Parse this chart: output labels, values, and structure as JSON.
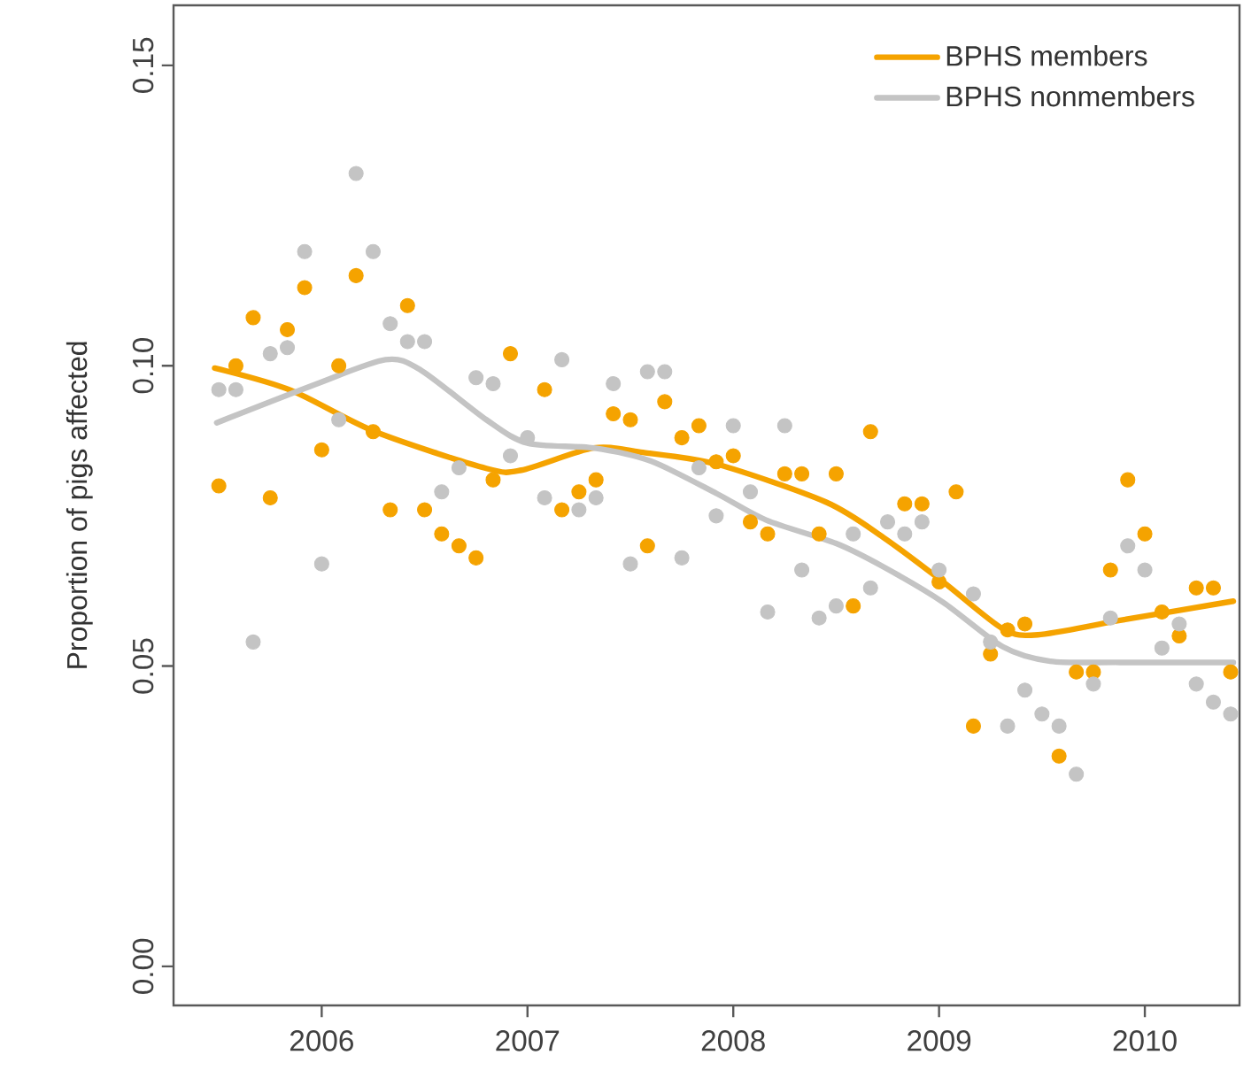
{
  "chart_data": {
    "type": "scatter",
    "ylabel": "Proportion of pigs affected",
    "xlim": [
      2005.28,
      2010.46
    ],
    "ylim": [
      -0.0065,
      0.16
    ],
    "xticks": [
      2006,
      2007,
      2008,
      2009,
      2010
    ],
    "yticks": [
      {
        "value": 0,
        "label": "0.00"
      },
      {
        "value": 0.05,
        "label": "0.05"
      },
      {
        "value": 0.1,
        "label": "0.10"
      },
      {
        "value": 0.15,
        "label": "0.15"
      }
    ],
    "grid": false,
    "legend": "top right",
    "series": [
      {
        "marker": "circle",
        "color": "#f5a300",
        "x": [
          2005.5,
          2005.583,
          2005.667,
          2005.75,
          2005.833,
          2005.917,
          2006.0,
          2006.083,
          2006.167,
          2006.25,
          2006.333,
          2006.417,
          2006.5,
          2006.583,
          2006.667,
          2006.75,
          2006.833,
          2006.917,
          2007.0,
          2007.083,
          2007.167,
          2007.25,
          2007.333,
          2007.417,
          2007.5,
          2007.583,
          2007.667,
          2007.75,
          2007.833,
          2007.917,
          2008.0,
          2008.083,
          2008.167,
          2008.25,
          2008.333,
          2008.417,
          2008.5,
          2008.583,
          2008.667,
          2008.75,
          2008.833,
          2008.917,
          2009.0,
          2009.083,
          2009.167,
          2009.25,
          2009.333,
          2009.417,
          2009.5,
          2009.583,
          2009.667,
          2009.75,
          2009.833,
          2009.917,
          2010.0,
          2010.083,
          2010.167,
          2010.25,
          2010.333,
          2010.417
        ],
        "values": [
          0.08,
          0.1,
          0.108,
          0.078,
          0.106,
          0.113,
          0.086,
          0.1,
          0.115,
          0.089,
          0.076,
          0.11,
          0.076,
          0.072,
          0.07,
          0.068,
          0.081,
          0.102,
          null,
          0.096,
          0.076,
          0.079,
          0.081,
          0.092,
          0.091,
          0.07,
          0.094,
          0.088,
          0.09,
          0.084,
          0.085,
          0.074,
          0.072,
          0.082,
          0.082,
          0.072,
          0.082,
          0.06,
          0.089,
          null,
          0.077,
          0.077,
          0.064,
          0.079,
          0.04,
          0.052,
          0.056,
          0.057,
          null,
          0.035,
          0.049,
          0.049,
          0.066,
          0.081,
          0.072,
          0.059,
          0.055,
          0.063,
          0.063,
          0.049
        ]
      },
      {
        "marker": "circle",
        "color": "#c4c4c4",
        "x": [
          2005.5,
          2005.583,
          2005.667,
          2005.75,
          2005.833,
          2005.917,
          2006.0,
          2006.083,
          2006.167,
          2006.25,
          2006.333,
          2006.417,
          2006.5,
          2006.583,
          2006.667,
          2006.75,
          2006.833,
          2006.917,
          2007.0,
          2007.083,
          2007.167,
          2007.25,
          2007.333,
          2007.417,
          2007.5,
          2007.583,
          2007.667,
          2007.75,
          2007.833,
          2007.917,
          2008.0,
          2008.083,
          2008.167,
          2008.25,
          2008.333,
          2008.417,
          2008.5,
          2008.583,
          2008.667,
          2008.75,
          2008.833,
          2008.917,
          2009.0,
          2009.083,
          2009.167,
          2009.25,
          2009.333,
          2009.417,
          2009.5,
          2009.583,
          2009.667,
          2009.75,
          2009.833,
          2009.917,
          2010.0,
          2010.083,
          2010.167,
          2010.25,
          2010.333,
          2010.417
        ],
        "values": [
          0.096,
          0.096,
          0.054,
          0.102,
          0.103,
          0.119,
          0.067,
          0.091,
          0.132,
          0.119,
          0.107,
          0.104,
          0.104,
          0.079,
          0.083,
          0.098,
          0.097,
          0.085,
          0.088,
          0.078,
          0.101,
          0.076,
          0.078,
          0.097,
          0.067,
          0.099,
          0.099,
          0.068,
          0.083,
          0.075,
          0.09,
          0.079,
          0.059,
          0.09,
          0.066,
          0.058,
          0.06,
          0.072,
          0.063,
          0.074,
          0.072,
          0.074,
          0.066,
          null,
          0.062,
          0.054,
          0.04,
          0.046,
          0.042,
          0.04,
          0.032,
          0.047,
          0.058,
          0.07,
          0.066,
          0.053,
          0.057,
          0.047,
          0.044,
          0.042
        ]
      },
      {
        "type": "line",
        "marker": "none",
        "name": "BPHS members",
        "color": "#f5a300",
        "x": [
          2005.48,
          2005.85,
          2006.26,
          2006.8,
          2006.97,
          2007.32,
          2007.55,
          2007.92,
          2008.45,
          2008.73,
          2009.02,
          2009.31,
          2009.48,
          2009.88,
          2010.43
        ],
        "values": [
          0.0996,
          0.0959,
          0.089,
          0.0829,
          0.0826,
          0.0863,
          0.0856,
          0.0836,
          0.0773,
          0.0714,
          0.064,
          0.0562,
          0.0552,
          0.0576,
          0.0608
        ]
      },
      {
        "type": "line",
        "marker": "none",
        "name": "BPHS nonmembers",
        "color": "#c4c4c4",
        "x": [
          2005.49,
          2005.97,
          2006.31,
          2006.48,
          2006.8,
          2007.0,
          2007.32,
          2007.6,
          2007.92,
          2008.16,
          2008.5,
          2008.73,
          2009.02,
          2009.31,
          2009.54,
          2009.88,
          2010.43
        ],
        "values": [
          0.0905,
          0.0969,
          0.101,
          0.0993,
          0.091,
          0.0871,
          0.0863,
          0.0841,
          0.0787,
          0.0743,
          0.0704,
          0.0665,
          0.0606,
          0.0532,
          0.0508,
          0.0506,
          0.0506
        ]
      }
    ]
  }
}
